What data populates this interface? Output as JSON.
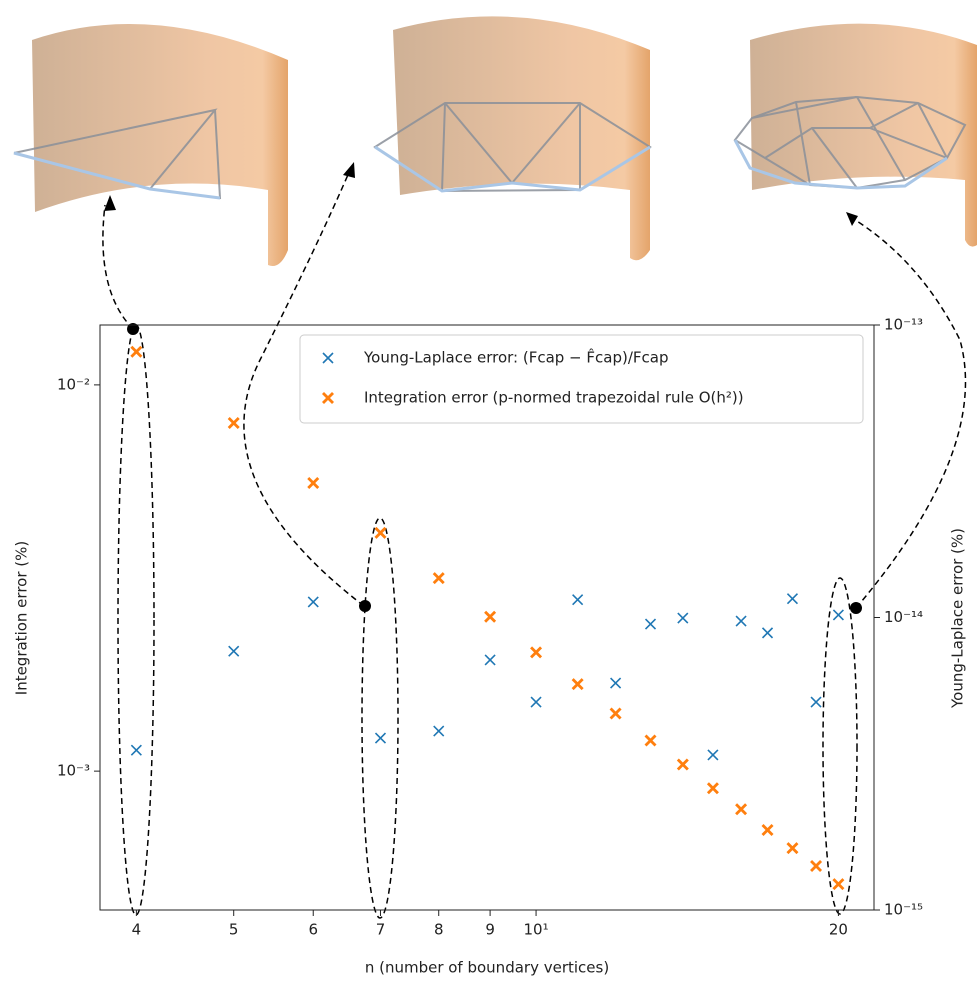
{
  "chart_data": {
    "type": "scatter",
    "xlabel": "n (number of boundary vertices)",
    "ylabel": "Integration error (%)",
    "y2label": "Young-Laplace error (%)",
    "x": [
      4,
      5,
      6,
      7,
      8,
      9,
      10,
      11,
      12,
      13,
      14,
      15,
      16,
      17,
      18,
      19,
      20
    ],
    "series": [
      {
        "name": "Young-Laplace error: (Fcap − F̂cap)/Fcap",
        "color": "#1f77b4",
        "marker": "x",
        "axis": "y2",
        "values": [
          3.52e-15,
          7.67e-15,
          1.13e-14,
          3.87e-15,
          4.09e-15,
          7.16e-15,
          5.14e-15,
          1.15e-14,
          5.97e-15,
          9.5e-15,
          9.96e-15,
          3.39e-15,
          9.72e-15,
          8.86e-15,
          1.16e-14,
          5.14e-15,
          1.02e-14
        ]
      },
      {
        "name": "Integration error (p-normed trapezoidal rule O(h²))",
        "color": "#ff7f0e",
        "marker": "X",
        "axis": "y",
        "values": [
          0.01218,
          0.00797,
          0.00557,
          0.00414,
          0.00316,
          0.00251,
          0.00203,
          0.00168,
          0.00141,
          0.0012,
          0.00104,
          0.000903,
          0.000797,
          0.000704,
          0.000632,
          0.000568,
          0.00051
        ]
      }
    ],
    "xscale": "log",
    "yscale": "log",
    "y2scale": "log",
    "xlim": [
      3.68,
      21.7
    ],
    "xticks": [
      4,
      5,
      6,
      7,
      8,
      9,
      {
        "value": 10,
        "label": "10¹"
      },
      20
    ],
    "ylim": [
      0.000437,
      0.01429
    ],
    "yticks": [
      {
        "value": 0.001,
        "label": "10⁻³"
      },
      {
        "value": 0.01,
        "label": "10⁻²"
      }
    ],
    "y2lim": [
      1e-15,
      1e-13
    ],
    "y2ticks": [
      {
        "value": 1e-15,
        "label": "10⁻¹⁵"
      },
      {
        "value": 1e-14,
        "label": "10⁻¹⁴"
      },
      {
        "value": 1e-13,
        "label": "10⁻¹³"
      }
    ],
    "legend": "upper right"
  }
}
